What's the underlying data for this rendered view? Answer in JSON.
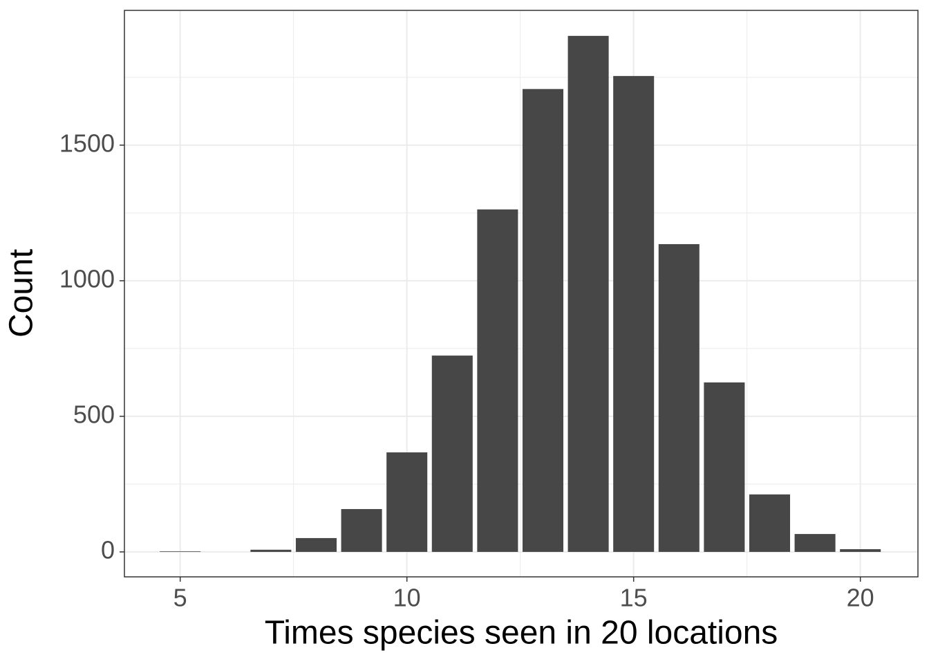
{
  "chart_data": {
    "type": "bar",
    "x_label": "Times species seen in 20 locations",
    "y_label": "Count",
    "x": [
      5,
      6,
      7,
      8,
      9,
      10,
      11,
      12,
      13,
      14,
      15,
      16,
      17,
      18,
      19,
      20
    ],
    "values": [
      2,
      0,
      8,
      51,
      158,
      367,
      724,
      1263,
      1707,
      1903,
      1755,
      1135,
      625,
      212,
      66,
      10
    ],
    "color": "#474747",
    "xlim": [
      3.77,
      21.27
    ],
    "xticks": [
      5,
      10,
      15,
      20
    ],
    "ylim": [
      -92,
      1997
    ],
    "yticks": [
      0,
      500,
      1000,
      1500
    ],
    "grid": true,
    "minor_grid": true
  }
}
